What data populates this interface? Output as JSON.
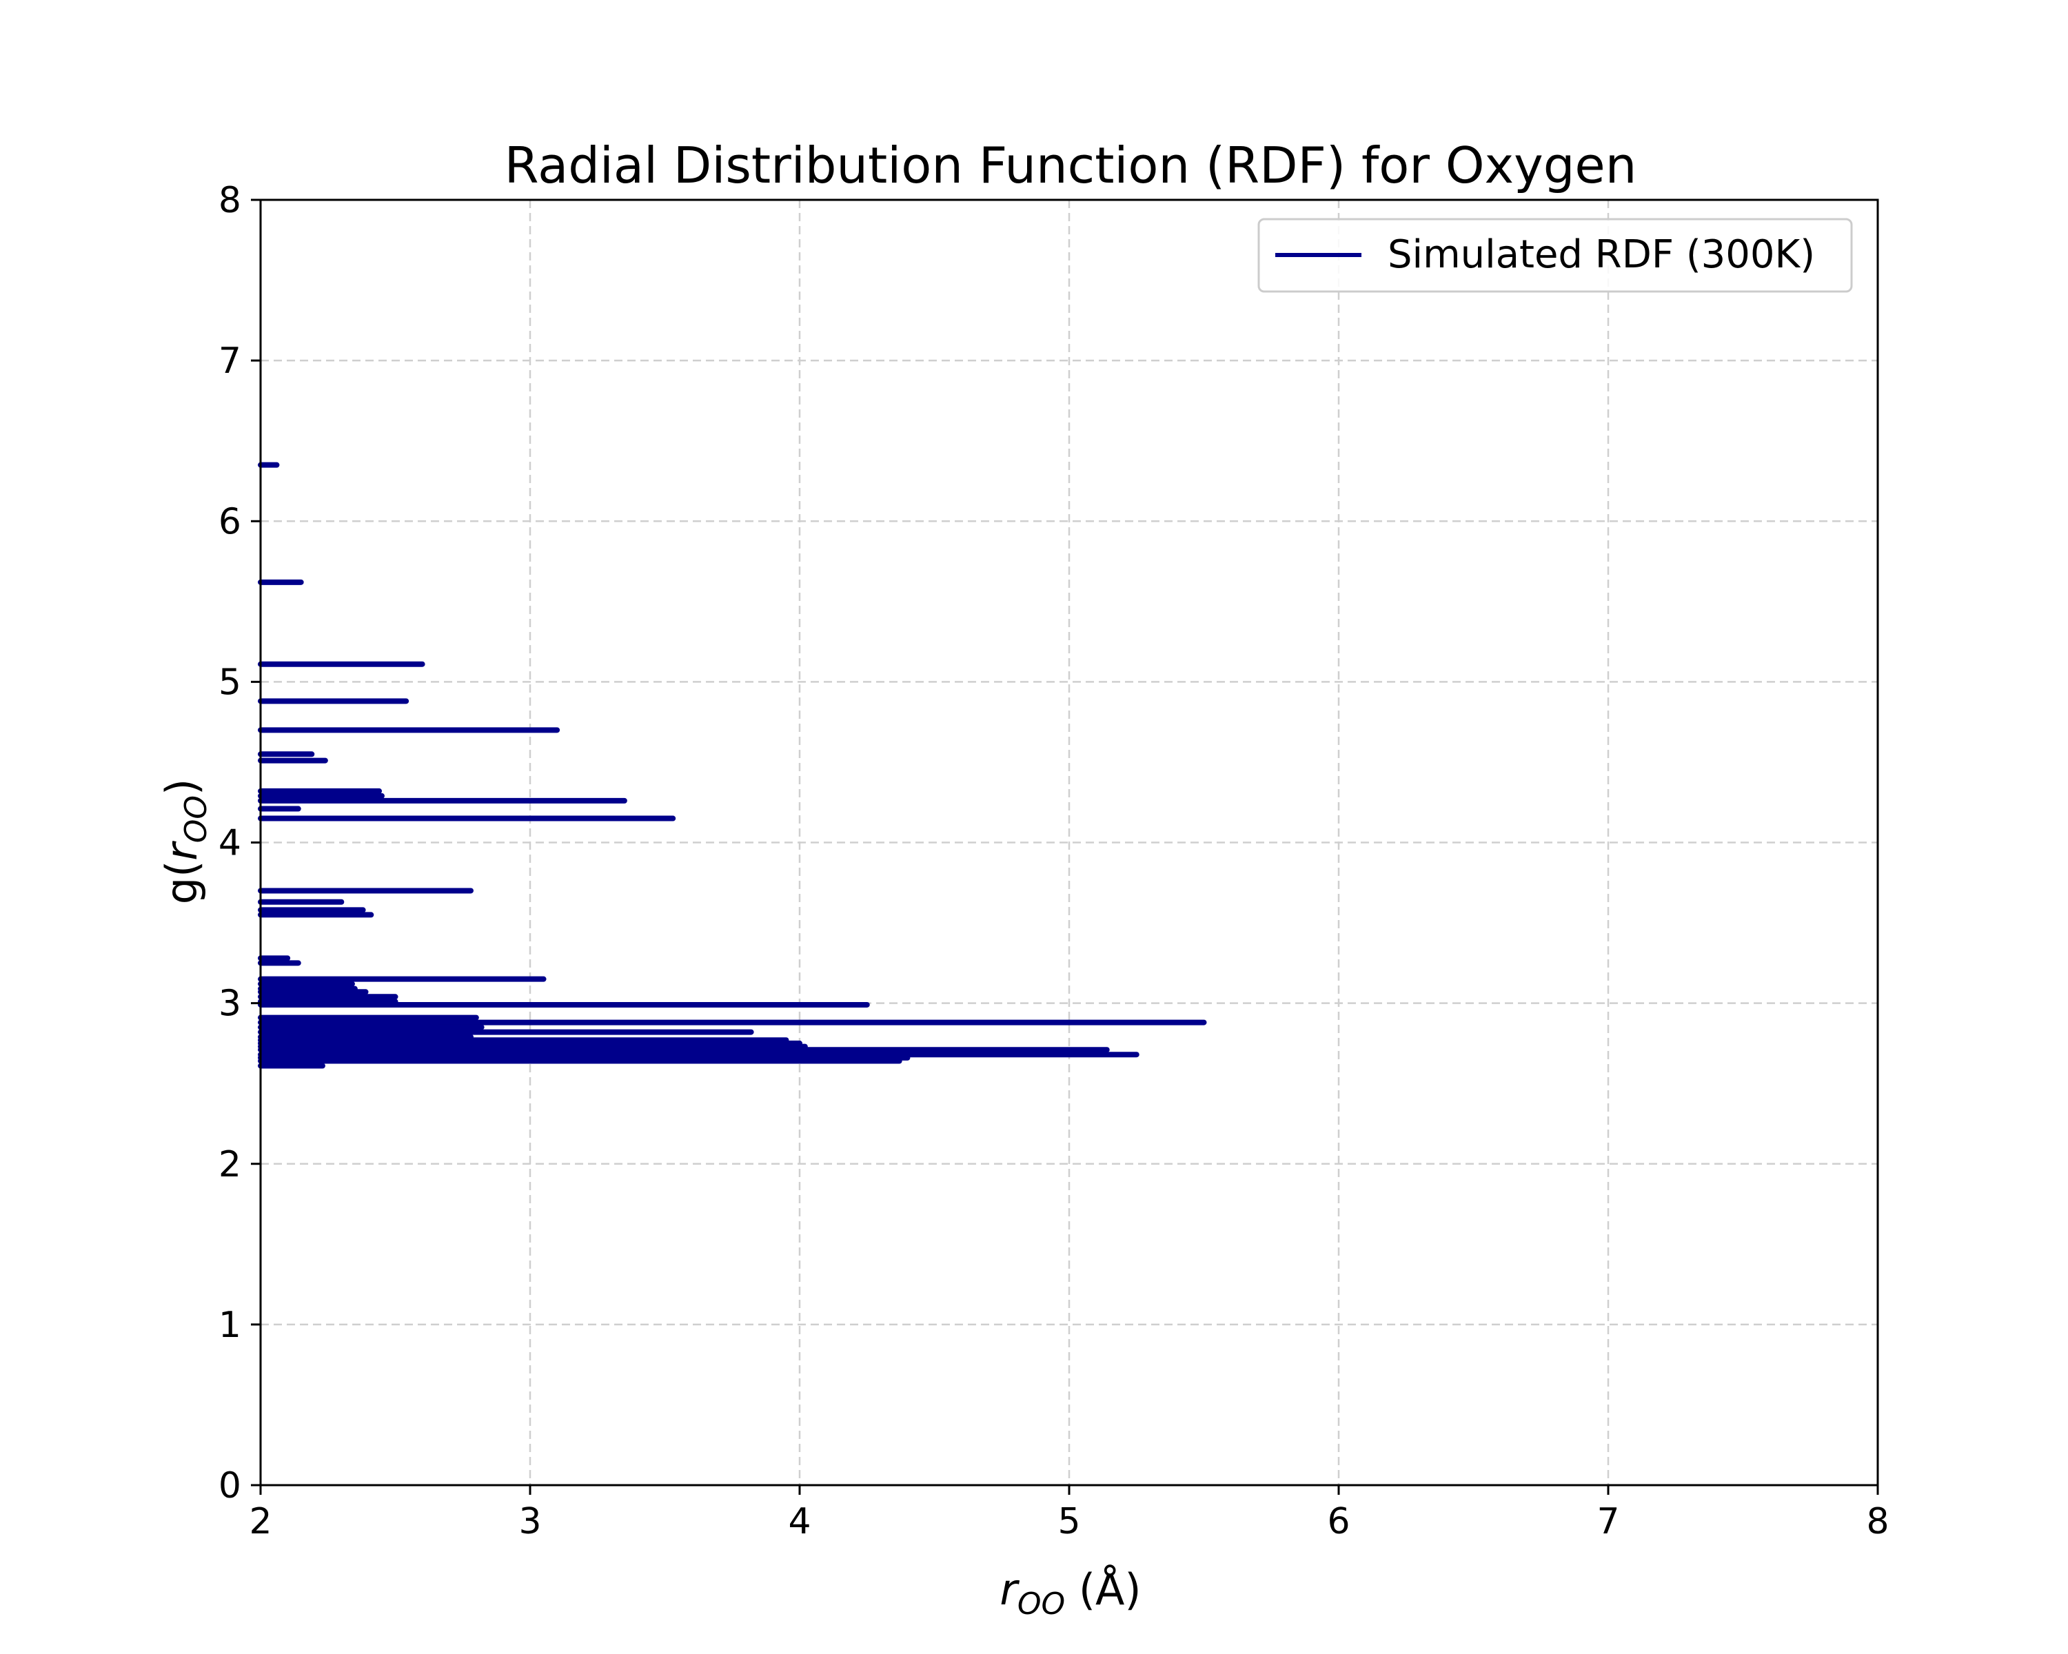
{
  "chart_data": {
    "type": "line",
    "title": "Radial Distribution Function (RDF) for Oxygen",
    "xlabel": {
      "base": "r",
      "sub": "OO",
      "unit": " (Å)"
    },
    "ylabel": {
      "prefix": "g(",
      "base": "r",
      "sub": "OO",
      "suffix": ")"
    },
    "xlim": [
      2,
      8
    ],
    "ylim": [
      0,
      8
    ],
    "xticks": [
      "2",
      "3",
      "4",
      "5",
      "6",
      "7",
      "8"
    ],
    "yticks": [
      "0",
      "1",
      "2",
      "3",
      "4",
      "5",
      "6",
      "7",
      "8"
    ],
    "grid": true,
    "legend_position": "top-right",
    "color": "#00008b",
    "series": [
      {
        "name": "Simulated RDF (300K)",
        "segments": [
          {
            "y": 6.35,
            "x": [
              2.0,
              2.06
            ]
          },
          {
            "y": 5.62,
            "x": [
              2.0,
              2.15
            ]
          },
          {
            "y": 5.11,
            "x": [
              2.0,
              2.6
            ]
          },
          {
            "y": 4.88,
            "x": [
              2.0,
              2.54
            ]
          },
          {
            "y": 4.7,
            "x": [
              2.0,
              3.1
            ]
          },
          {
            "y": 4.55,
            "x": [
              2.0,
              2.19
            ]
          },
          {
            "y": 4.51,
            "x": [
              2.0,
              2.24
            ]
          },
          {
            "y": 4.32,
            "x": [
              2.0,
              2.44
            ]
          },
          {
            "y": 4.29,
            "x": [
              2.0,
              2.45
            ]
          },
          {
            "y": 4.26,
            "x": [
              2.0,
              3.35
            ]
          },
          {
            "y": 4.21,
            "x": [
              2.0,
              2.14
            ]
          },
          {
            "y": 4.15,
            "x": [
              2.0,
              3.53
            ]
          },
          {
            "y": 3.7,
            "x": [
              2.0,
              2.78
            ]
          },
          {
            "y": 3.63,
            "x": [
              2.0,
              2.3
            ]
          },
          {
            "y": 3.58,
            "x": [
              2.0,
              2.38
            ]
          },
          {
            "y": 3.55,
            "x": [
              2.0,
              2.41
            ]
          },
          {
            "y": 3.28,
            "x": [
              2.0,
              2.1
            ]
          },
          {
            "y": 3.25,
            "x": [
              2.0,
              2.14
            ]
          },
          {
            "y": 3.15,
            "x": [
              2.0,
              3.05
            ]
          },
          {
            "y": 3.12,
            "x": [
              2.0,
              2.34
            ]
          },
          {
            "y": 3.09,
            "x": [
              2.0,
              2.35
            ]
          },
          {
            "y": 3.07,
            "x": [
              2.0,
              2.39
            ]
          },
          {
            "y": 3.04,
            "x": [
              2.0,
              2.5
            ]
          },
          {
            "y": 3.01,
            "x": [
              2.0,
              2.5
            ]
          },
          {
            "y": 2.99,
            "x": [
              2.0,
              4.25
            ]
          },
          {
            "y": 2.91,
            "x": [
              2.0,
              2.8
            ]
          },
          {
            "y": 2.88,
            "x": [
              2.0,
              5.5
            ]
          },
          {
            "y": 2.85,
            "x": [
              2.0,
              2.82
            ]
          },
          {
            "y": 2.82,
            "x": [
              2.0,
              3.82
            ]
          },
          {
            "y": 2.79,
            "x": [
              2.0,
              2.78
            ]
          },
          {
            "y": 2.77,
            "x": [
              2.0,
              3.95
            ]
          },
          {
            "y": 2.75,
            "x": [
              2.0,
              4.0
            ]
          },
          {
            "y": 2.73,
            "x": [
              2.0,
              4.02
            ]
          },
          {
            "y": 2.71,
            "x": [
              2.0,
              5.14
            ]
          },
          {
            "y": 2.68,
            "x": [
              2.0,
              5.25
            ]
          },
          {
            "y": 2.66,
            "x": [
              2.0,
              4.4
            ]
          },
          {
            "y": 2.64,
            "x": [
              2.0,
              4.37
            ]
          },
          {
            "y": 2.61,
            "x": [
              2.0,
              2.23
            ]
          }
        ]
      }
    ]
  }
}
